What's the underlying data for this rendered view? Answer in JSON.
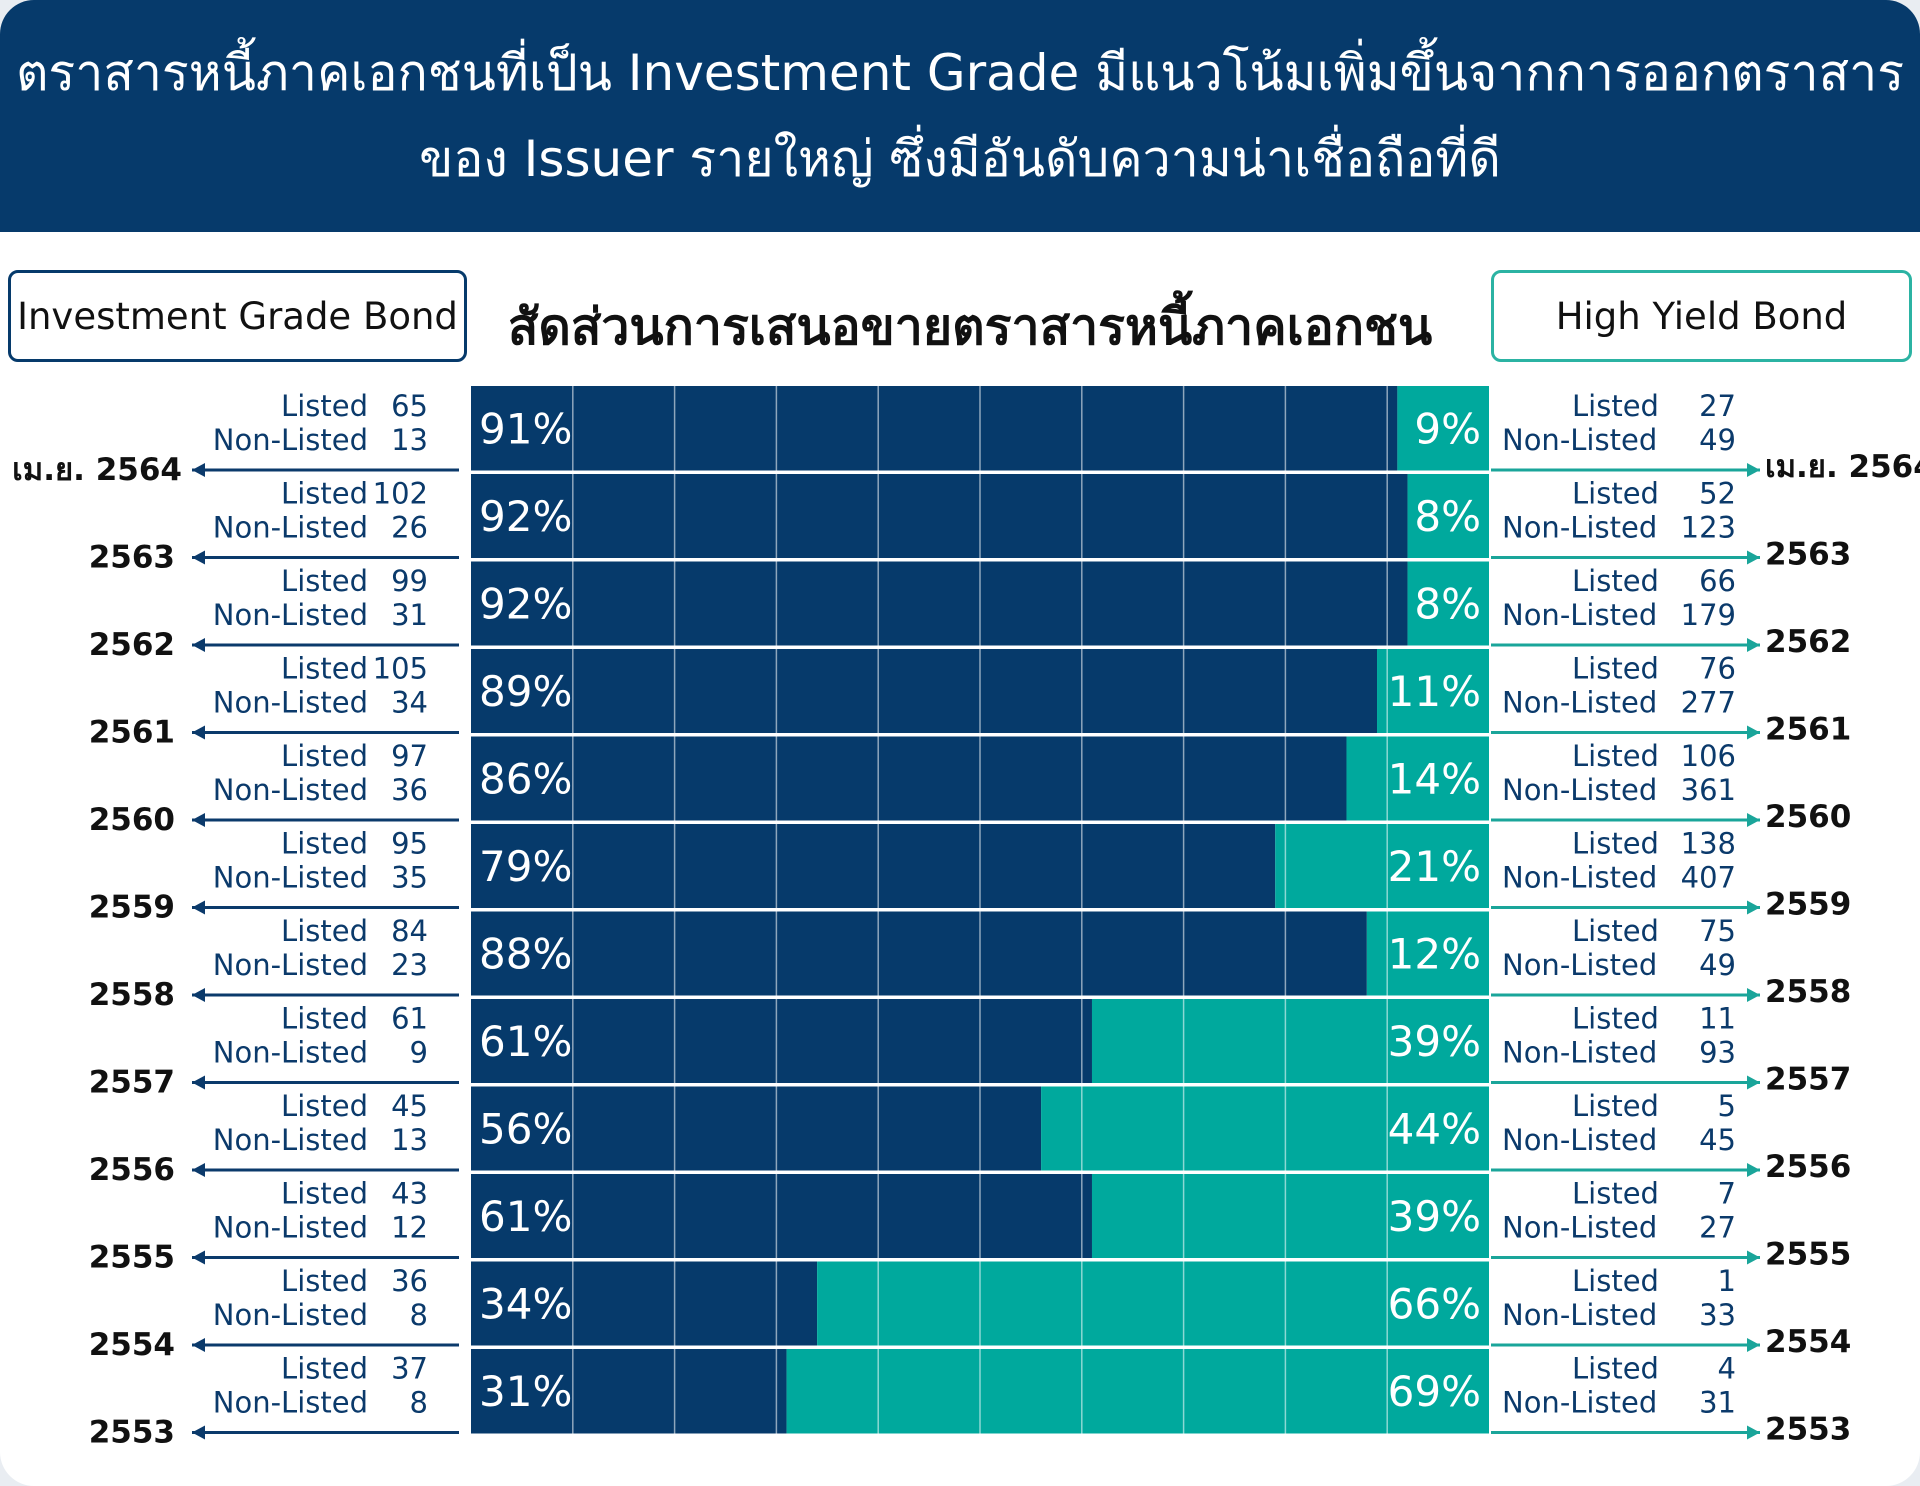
{
  "header": {
    "line1": "ตราสารหนี้ภาคเอกชนที่เป็น Investment Grade มีแนวโน้มเพิ่มขึ้นจากการออกตราสาร",
    "line2": "ของ Issuer รายใหญ่ ซึ่งมีอันดับความน่าเชื่อถือที่ดี"
  },
  "legend": {
    "left": "Investment Grade Bond",
    "right": "High Yield Bond"
  },
  "colors": {
    "header": "#063a6b",
    "investment_grade": "#063a6b",
    "high_yield": "#00a99d",
    "arrow": "#0b3a6b",
    "arrow_right": "#1aa59a"
  },
  "labels": {
    "listed": "Listed",
    "non_listed": "Non-Listed"
  },
  "chart_data": {
    "type": "bar",
    "orientation": "horizontal",
    "stacked": true,
    "title": "สัดส่วนการเสนอขายตราสารหนี้ภาคเอกชน",
    "categories": [
      "เม.ย. 2564",
      "2563",
      "2562",
      "2561",
      "2560",
      "2559",
      "2558",
      "2557",
      "2556",
      "2555",
      "2554",
      "2553"
    ],
    "series": [
      {
        "name": "Investment Grade Bond",
        "values": [
          91,
          92,
          92,
          89,
          86,
          79,
          88,
          61,
          56,
          61,
          34,
          31
        ],
        "labels": [
          "91%",
          "92%",
          "92%",
          "89%",
          "86%",
          "79%",
          "88%",
          "61%",
          "56%",
          "61%",
          "34%",
          "31%"
        ]
      },
      {
        "name": "High Yield Bond",
        "values": [
          9,
          8,
          8,
          11,
          14,
          21,
          12,
          39,
          44,
          39,
          66,
          69
        ],
        "labels": [
          "9%",
          "8%",
          "8%",
          "11%",
          "14%",
          "21%",
          "12%",
          "39%",
          "44%",
          "39%",
          "66%",
          "69%"
        ]
      }
    ],
    "xlim": [
      0,
      100
    ],
    "investment_grade_counts": {
      "listed": [
        65,
        102,
        99,
        105,
        97,
        95,
        84,
        61,
        45,
        43,
        36,
        37
      ],
      "non_listed": [
        13,
        26,
        31,
        34,
        36,
        35,
        23,
        9,
        13,
        12,
        8,
        8
      ]
    },
    "high_yield_counts": {
      "listed": [
        27,
        52,
        66,
        76,
        106,
        138,
        75,
        11,
        5,
        7,
        1,
        4
      ],
      "non_listed": [
        49,
        123,
        179,
        277,
        361,
        407,
        49,
        93,
        45,
        27,
        33,
        31
      ]
    }
  }
}
